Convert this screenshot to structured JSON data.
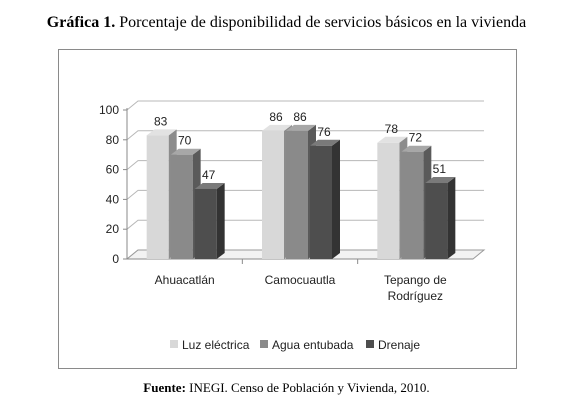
{
  "title_prefix": "Gráfica 1.",
  "title_text": "Porcentaje de disponibilidad de servicios básicos en la vivienda",
  "source_prefix": "Fuente:",
  "source_text": "INEGI. Censo de Población y Vivienda, 2010.",
  "chart_data": {
    "type": "bar",
    "categories": [
      [
        "Ahuacatlán"
      ],
      [
        "Camocuautla"
      ],
      [
        "Tepango de",
        "Rodríguez"
      ]
    ],
    "series": [
      {
        "name": "Luz eléctrica",
        "values": [
          83,
          86,
          78
        ],
        "color": "#d8d8d8"
      },
      {
        "name": "Agua entubada",
        "values": [
          70,
          86,
          72
        ],
        "color": "#8a8a8a"
      },
      {
        "name": "Drenaje",
        "values": [
          47,
          76,
          51
        ],
        "color": "#4e4e4e"
      }
    ],
    "ylim": [
      0,
      100
    ],
    "yticks": [
      0,
      20,
      40,
      60,
      80,
      100
    ],
    "grid": true,
    "legend_position": "bottom",
    "style": "3d"
  }
}
